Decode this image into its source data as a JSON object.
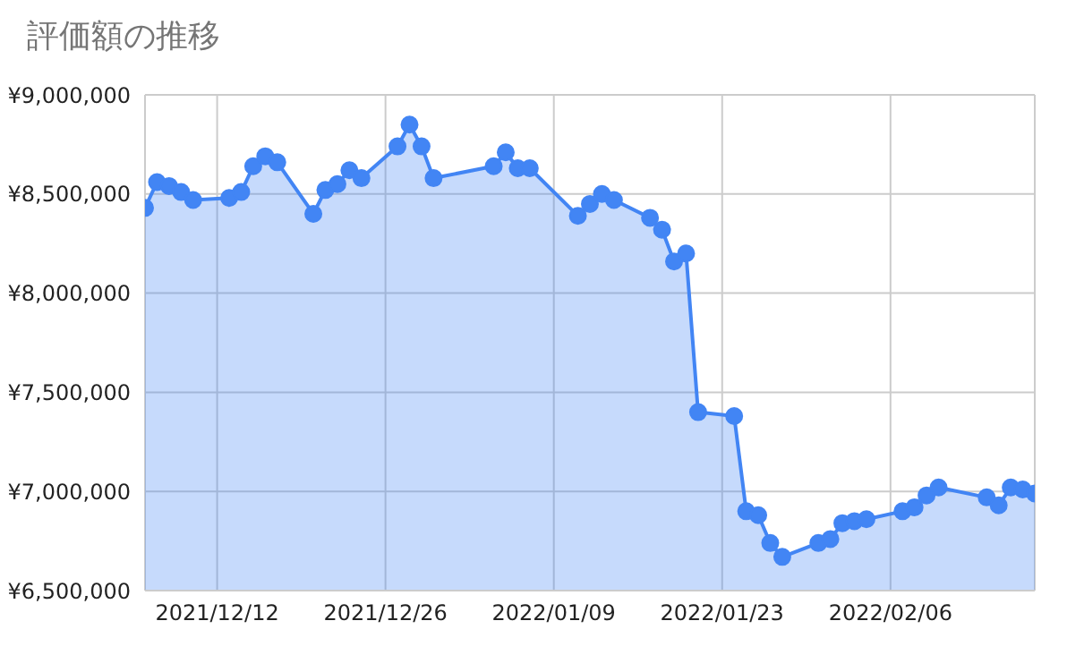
{
  "chart_data": {
    "type": "area",
    "title": "評価額の推移",
    "x": [
      "2021-12-06",
      "2021-12-07",
      "2021-12-08",
      "2021-12-09",
      "2021-12-10",
      "2021-12-13",
      "2021-12-14",
      "2021-12-15",
      "2021-12-16",
      "2021-12-17",
      "2021-12-20",
      "2021-12-21",
      "2021-12-22",
      "2021-12-23",
      "2021-12-24",
      "2021-12-27",
      "2021-12-28",
      "2021-12-29",
      "2021-12-30",
      "2022-01-04",
      "2022-01-05",
      "2022-01-06",
      "2022-01-07",
      "2022-01-11",
      "2022-01-12",
      "2022-01-13",
      "2022-01-14",
      "2022-01-17",
      "2022-01-18",
      "2022-01-19",
      "2022-01-20",
      "2022-01-21",
      "2022-01-24",
      "2022-01-25",
      "2022-01-26",
      "2022-01-27",
      "2022-01-28",
      "2022-01-31",
      "2022-02-01",
      "2022-02-02",
      "2022-02-03",
      "2022-02-04",
      "2022-02-07",
      "2022-02-08",
      "2022-02-09",
      "2022-02-10",
      "2022-02-14",
      "2022-02-15",
      "2022-02-16",
      "2022-02-17",
      "2022-02-18"
    ],
    "series": [
      {
        "color": "#4285f4",
        "values": [
          8430000,
          8560000,
          8540000,
          8510000,
          8470000,
          8480000,
          8510000,
          8640000,
          8690000,
          8660000,
          8400000,
          8520000,
          8550000,
          8620000,
          8580000,
          8740000,
          8850000,
          8740000,
          8580000,
          8640000,
          8710000,
          8630000,
          8630000,
          8390000,
          8450000,
          8500000,
          8470000,
          8380000,
          8320000,
          8160000,
          8200000,
          7400000,
          7380000,
          6900000,
          6880000,
          6740000,
          6670000,
          6740000,
          6760000,
          6840000,
          6850000,
          6860000,
          6900000,
          6920000,
          6980000,
          7020000,
          6970000,
          6930000,
          7020000,
          7010000,
          6990000
        ]
      }
    ],
    "xlim": [
      "2021-12-06",
      "2022-02-18"
    ],
    "xticks": [
      {
        "value": "2021-12-12",
        "label": "2021/12/12"
      },
      {
        "value": "2021-12-26",
        "label": "2021/12/26"
      },
      {
        "value": "2022-01-09",
        "label": "2022/01/09"
      },
      {
        "value": "2022-01-23",
        "label": "2022/01/23"
      },
      {
        "value": "2022-02-06",
        "label": "2022/02/06"
      }
    ],
    "ylim": [
      6500000,
      9000000
    ],
    "yticks": [
      {
        "value": 6500000,
        "label": "¥6,500,000"
      },
      {
        "value": 7000000,
        "label": "¥7,000,000"
      },
      {
        "value": 7500000,
        "label": "¥7,500,000"
      },
      {
        "value": 8000000,
        "label": "¥8,000,000"
      },
      {
        "value": 8500000,
        "label": "¥8,500,000"
      },
      {
        "value": 9000000,
        "label": "¥9,000,000"
      }
    ],
    "grid": true,
    "marker": "circle",
    "line_style": "solid"
  }
}
